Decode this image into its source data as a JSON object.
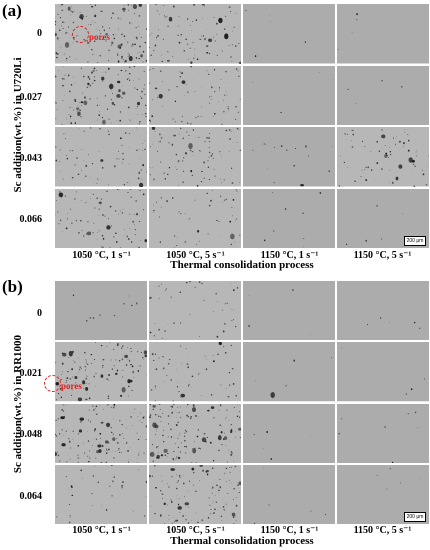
{
  "figure": {
    "x_axis_title": "Thermal consolidation process",
    "scale_bar": "200 μm",
    "columns": [
      "1050 °C, 1 s⁻¹",
      "1050 °C, 5 s⁻¹",
      "1150 °C, 1 s⁻¹",
      "1150 °C, 5 s⁻¹"
    ],
    "panels": [
      {
        "label": "(a)",
        "y_axis_label": "Sc addition(wt.%) in U720Li",
        "rows": [
          "0",
          "0.027",
          "0.043",
          "0.066"
        ],
        "annotation": "pores",
        "pore_density": [
          [
            0.95,
            0.55,
            0.02,
            0.02
          ],
          [
            0.85,
            0.45,
            0.01,
            0.01
          ],
          [
            0.45,
            0.55,
            0.08,
            0.45
          ],
          [
            0.6,
            0.3,
            0.04,
            0.02
          ]
        ]
      },
      {
        "label": "(b)",
        "y_axis_label": "Sc addition(wt.%) in RR1000",
        "rows": [
          "0",
          "0.021",
          "0.048",
          "0.064"
        ],
        "annotation": "pores",
        "pore_density": [
          [
            0.05,
            0.3,
            0.01,
            0.02
          ],
          [
            0.8,
            0.35,
            0.02,
            0.01
          ],
          [
            0.85,
            0.95,
            0.02,
            0.03
          ],
          [
            0.2,
            0.75,
            0.02,
            0.02
          ]
        ]
      }
    ],
    "colors": {
      "matrix": "#b7b7b7",
      "matrix_clean": "#acacac",
      "pore": "#1e1e1e",
      "annotation": "#e02020"
    }
  }
}
